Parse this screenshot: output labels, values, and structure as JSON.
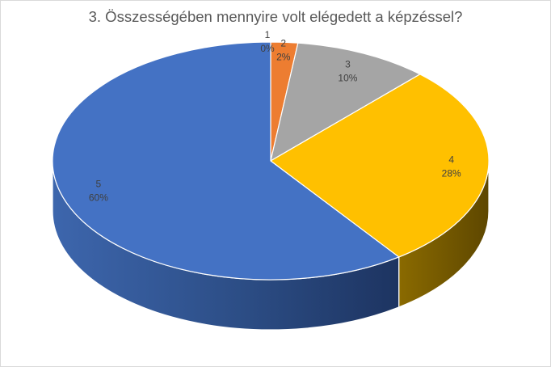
{
  "chart_data": {
    "type": "pie",
    "title": "3. Összességében mennyire volt elégedett a képzéssel?",
    "categories": [
      "1",
      "2",
      "3",
      "4",
      "5"
    ],
    "values": [
      0,
      2,
      10,
      28,
      60
    ],
    "value_labels": [
      "0%",
      "2%",
      "10%",
      "28%",
      "60%"
    ],
    "colors": [
      "#5b9bd5",
      "#ed7d31",
      "#a5a5a5",
      "#ffc000",
      "#4472c4"
    ],
    "three_d": true,
    "legend": "none"
  }
}
